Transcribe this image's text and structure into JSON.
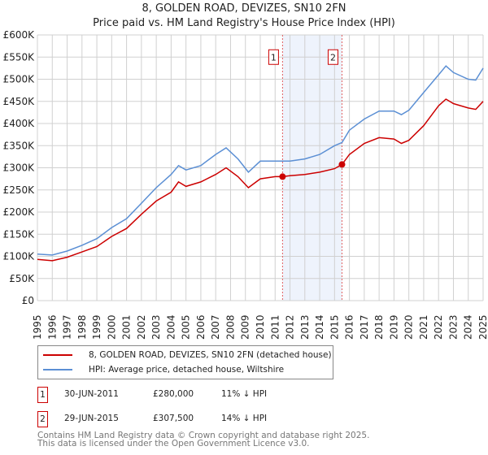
{
  "chart_data": {
    "type": "line",
    "title": "8, GOLDEN ROAD, DEVIZES, SN10 2FN",
    "subtitle": "Price paid vs. HM Land Registry's House Price Index (HPI)",
    "xlabel": "",
    "ylabel": "",
    "xlim": [
      1995,
      2025
    ],
    "ylim": [
      0,
      600000
    ],
    "y_ticks": [
      "£0",
      "£50K",
      "£100K",
      "£150K",
      "£200K",
      "£250K",
      "£300K",
      "£350K",
      "£400K",
      "£450K",
      "£500K",
      "£550K",
      "£600K"
    ],
    "x_ticks": [
      "1995",
      "1996",
      "1997",
      "1998",
      "1999",
      "2000",
      "2001",
      "2002",
      "2003",
      "2004",
      "2005",
      "2006",
      "2007",
      "2008",
      "2009",
      "2010",
      "2011",
      "2012",
      "2013",
      "2014",
      "2015",
      "2016",
      "2017",
      "2018",
      "2019",
      "2020",
      "2021",
      "2022",
      "2023",
      "2024",
      "2025"
    ],
    "grid": true,
    "series": [
      {
        "name": "8, GOLDEN ROAD, DEVIZES, SN10 2FN (detached house)",
        "color": "#cc0000",
        "x": [
          1995,
          1996,
          1997,
          1998,
          1999,
          2000,
          2001,
          2002,
          2003,
          2004,
          2004.5,
          2005,
          2006,
          2007,
          2007.7,
          2008.5,
          2009.2,
          2010,
          2011,
          2011.5,
          2012,
          2013,
          2014,
          2015,
          2015.5,
          2016,
          2017,
          2018,
          2019,
          2019.5,
          2020,
          2021,
          2022,
          2022.5,
          2023,
          2024,
          2024.5,
          2025
        ],
        "y": [
          93000,
          90000,
          98000,
          110000,
          122000,
          145000,
          163000,
          195000,
          225000,
          245000,
          268000,
          258000,
          268000,
          285000,
          300000,
          280000,
          255000,
          275000,
          280000,
          280000,
          282000,
          285000,
          290000,
          298000,
          307500,
          330000,
          355000,
          368000,
          365000,
          355000,
          362000,
          395000,
          440000,
          455000,
          445000,
          435000,
          432000,
          450000
        ]
      },
      {
        "name": "HPI: Average price, detached house, Wiltshire",
        "color": "#5b8fd4",
        "x": [
          1995,
          1996,
          1997,
          1998,
          1999,
          2000,
          2001,
          2002,
          2003,
          2004,
          2004.5,
          2005,
          2006,
          2007,
          2007.7,
          2008.5,
          2009.2,
          2010,
          2011,
          2011.5,
          2012,
          2013,
          2014,
          2015,
          2015.5,
          2016,
          2017,
          2018,
          2019,
          2019.5,
          2020,
          2021,
          2022,
          2022.5,
          2023,
          2024,
          2024.5,
          2025
        ],
        "y": [
          105000,
          103000,
          112000,
          125000,
          140000,
          165000,
          185000,
          220000,
          255000,
          285000,
          305000,
          295000,
          305000,
          330000,
          345000,
          320000,
          290000,
          315000,
          315000,
          315000,
          315000,
          320000,
          330000,
          350000,
          357000,
          385000,
          410000,
          428000,
          428000,
          420000,
          430000,
          470000,
          510000,
          530000,
          515000,
          500000,
          498000,
          525000
        ]
      }
    ],
    "shaded_range": [
      2011.5,
      2015.5
    ],
    "annotations": [
      {
        "label": "1",
        "x": 2011.5,
        "y": 280000
      },
      {
        "label": "2",
        "x": 2015.5,
        "y": 307500
      }
    ]
  },
  "legend": {
    "items": [
      {
        "label": "8, GOLDEN ROAD, DEVIZES, SN10 2FN (detached house)",
        "color": "#cc0000"
      },
      {
        "label": "HPI: Average price, detached house, Wiltshire",
        "color": "#5b8fd4"
      }
    ]
  },
  "sales": [
    {
      "num": "1",
      "date": "30-JUN-2011",
      "price": "£280,000",
      "hpi": "11% ↓ HPI"
    },
    {
      "num": "2",
      "date": "29-JUN-2015",
      "price": "£307,500",
      "hpi": "14% ↓ HPI"
    }
  ],
  "footer": {
    "line1": "Contains HM Land Registry data © Crown copyright and database right 2025.",
    "line2": "This data is licensed under the Open Government Licence v3.0."
  }
}
